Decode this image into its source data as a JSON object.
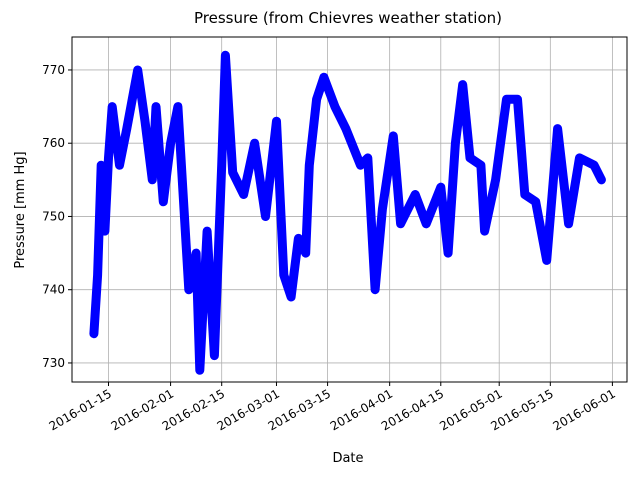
{
  "chart_data": {
    "type": "line",
    "title": "Pressure (from Chievres weather station)",
    "x_label": "Date",
    "y_label": "Pressure [mm Hg]",
    "x": [
      "2016-01-11",
      "2016-01-12",
      "2016-01-13",
      "2016-01-14",
      "2016-01-15",
      "2016-01-16",
      "2016-01-18",
      "2016-01-20",
      "2016-01-23",
      "2016-01-25",
      "2016-01-27",
      "2016-01-28",
      "2016-01-30",
      "2016-02-01",
      "2016-02-03",
      "2016-02-06",
      "2016-02-08",
      "2016-02-09",
      "2016-02-11",
      "2016-02-13",
      "2016-02-15",
      "2016-02-16",
      "2016-02-18",
      "2016-02-21",
      "2016-02-24",
      "2016-02-27",
      "2016-03-01",
      "2016-03-03",
      "2016-03-05",
      "2016-03-07",
      "2016-03-09",
      "2016-03-10",
      "2016-03-12",
      "2016-03-14",
      "2016-03-17",
      "2016-03-20",
      "2016-03-24",
      "2016-03-26",
      "2016-03-28",
      "2016-03-30",
      "2016-04-02",
      "2016-04-04",
      "2016-04-08",
      "2016-04-11",
      "2016-04-15",
      "2016-04-17",
      "2016-04-19",
      "2016-04-21",
      "2016-04-23",
      "2016-04-26",
      "2016-04-27",
      "2016-04-30",
      "2016-05-03",
      "2016-05-06",
      "2016-05-08",
      "2016-05-11",
      "2016-05-14",
      "2016-05-17",
      "2016-05-20",
      "2016-05-23",
      "2016-05-27",
      "2016-05-29"
    ],
    "series": [
      {
        "name": "Pressure",
        "color": "#0000ff",
        "values": [
          734,
          742,
          757,
          748,
          758,
          765,
          757,
          762,
          770,
          763,
          755,
          765,
          752,
          760,
          765,
          740,
          745,
          729,
          748,
          731,
          757,
          772,
          756,
          753,
          760,
          750,
          763,
          742,
          739,
          747,
          745,
          757,
          766,
          769,
          765,
          762,
          757,
          758,
          740,
          751,
          761,
          749,
          753,
          749,
          754,
          745,
          760,
          768,
          758,
          757,
          748,
          755,
          766,
          766,
          753,
          752,
          744,
          762,
          749,
          758,
          757,
          755
        ]
      }
    ],
    "xlim": [
      "2016-01-05",
      "2016-06-05"
    ],
    "xticks": [
      "2016-01-15",
      "2016-02-01",
      "2016-02-15",
      "2016-03-01",
      "2016-03-15",
      "2016-04-01",
      "2016-04-15",
      "2016-05-01",
      "2016-05-15",
      "2016-06-01"
    ],
    "ylim": [
      727.4,
      774.5
    ],
    "yticks": [
      730,
      740,
      750,
      760,
      770
    ],
    "grid": true
  }
}
